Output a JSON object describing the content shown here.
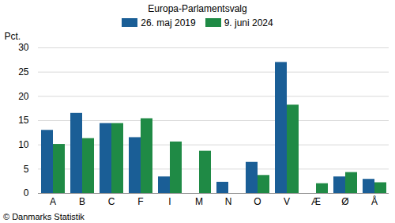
{
  "chart_data": {
    "type": "bar",
    "title": "Europa-Parlamentsvalg",
    "y_label": "Pct.",
    "caption": "© Danmarks Statistik",
    "categories": [
      "A",
      "B",
      "C",
      "F",
      "I",
      "M",
      "N",
      "O",
      "V",
      "Æ",
      "Ø",
      "Å"
    ],
    "series": [
      {
        "name": "26. maj 2019",
        "color": "#1a5e96",
        "values": [
          13.0,
          16.5,
          14.4,
          11.5,
          3.4,
          null,
          2.3,
          6.4,
          27.0,
          null,
          3.4,
          2.9
        ]
      },
      {
        "name": "9. juni 2024",
        "color": "#1f8a45",
        "values": [
          10.1,
          11.3,
          14.4,
          15.4,
          10.6,
          8.7,
          null,
          3.7,
          18.2,
          2.0,
          4.3,
          2.2
        ]
      }
    ],
    "ylim": [
      0,
      30
    ],
    "yticks": [
      0,
      5,
      10,
      15,
      20,
      25,
      30
    ],
    "grid": true,
    "legend": "top"
  }
}
